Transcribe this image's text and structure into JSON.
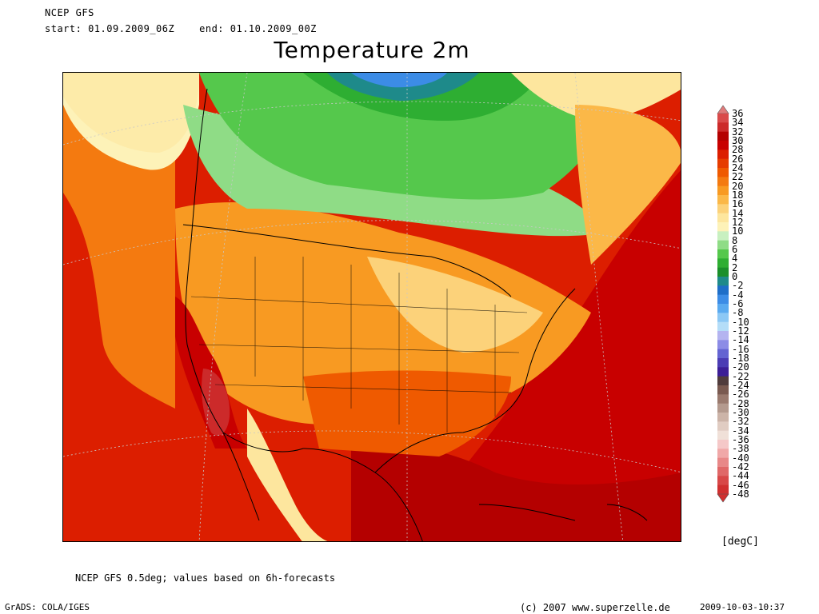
{
  "header": {
    "source": "NCEP GFS",
    "start_label": "start: 01.09.2009_06Z",
    "end_label": "end: 01.10.2009_00Z",
    "title": "Temperature 2m"
  },
  "legend": {
    "unit": "[degC]",
    "levels": [
      "36",
      "34",
      "32",
      "30",
      "28",
      "26",
      "24",
      "22",
      "20",
      "18",
      "16",
      "14",
      "12",
      "10",
      "8",
      "6",
      "4",
      "2",
      "0",
      "-2",
      "-4",
      "-6",
      "-8",
      "-10",
      "-12",
      "-14",
      "-16",
      "-18",
      "-20",
      "-22",
      "-24",
      "-26",
      "-28",
      "-30",
      "-32",
      "-34",
      "-36",
      "-38",
      "-40",
      "-42",
      "-44",
      "-46",
      "-48"
    ],
    "colors": [
      "#e07a7a",
      "#d94a4a",
      "#cc2a2a",
      "#b40000",
      "#c80000",
      "#dc1e00",
      "#e63c00",
      "#ef5a00",
      "#f47a10",
      "#f89a22",
      "#fbb848",
      "#fcd27a",
      "#fde69e",
      "#fdf2b8",
      "#c8f0c0",
      "#8fdc86",
      "#55c84c",
      "#2eae32",
      "#1a8f2a",
      "#1e8a8a",
      "#1e6ec8",
      "#3c8ce6",
      "#5aaaf0",
      "#8cc8f5",
      "#b4ddf8",
      "#b4b4f0",
      "#8c8ce6",
      "#6464d2",
      "#4b3cb4",
      "#3c1e96",
      "#503c3c",
      "#7a5a50",
      "#9a7a6e",
      "#b49a8e",
      "#ccb4a8",
      "#e0ccc2",
      "#f0e0d8",
      "#f5c8c8",
      "#f0a8a8",
      "#e88888",
      "#e06868",
      "#d84848",
      "#d03030"
    ]
  },
  "footer": {
    "note": "NCEP GFS 0.5deg; values based on 6h-forecasts",
    "grads": "GrADS: COLA/IGES",
    "copyright": "(c) 2007 www.superzelle.de",
    "timestamp": "2009-10-03-10:37"
  }
}
